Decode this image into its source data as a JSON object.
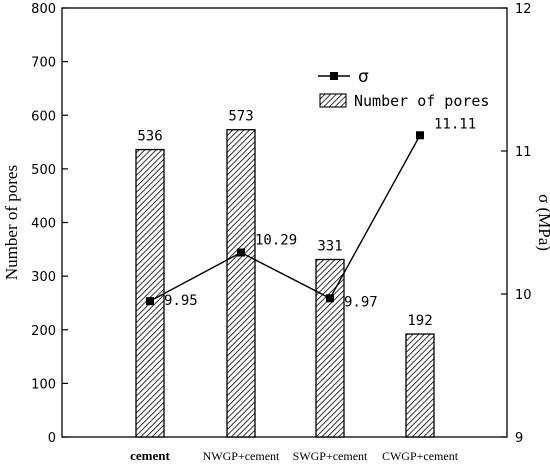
{
  "chart_data": {
    "type": "bar+line",
    "categories": [
      "cement",
      "NWGP+cement",
      "SWGP+cement",
      "CWGP+cement"
    ],
    "series": [
      {
        "name": "Number of pores",
        "type": "bar",
        "axis": "left",
        "values": [
          536,
          573,
          331,
          192
        ],
        "labels": [
          "536",
          "573",
          "331",
          "192"
        ],
        "pattern": "diagonal-hatch"
      },
      {
        "name": "σ",
        "type": "line",
        "axis": "right",
        "marker": "square",
        "values": [
          9.95,
          10.29,
          9.97,
          11.11
        ],
        "labels": [
          "9.95",
          "10.29",
          "9.97",
          "11.11"
        ]
      }
    ],
    "ylabel": "Number of pores",
    "ylim": [
      0,
      800
    ],
    "yticks": [
      "0",
      "100",
      "200",
      "300",
      "400",
      "500",
      "600",
      "700",
      "800"
    ],
    "y2label": "σ (MPa)",
    "y2lim": [
      9,
      12
    ],
    "y2ticks": [
      "9",
      "10",
      "11",
      "12"
    ],
    "legend_position": "top-right",
    "grid": false,
    "colors": {
      "bar_fill": "#ffffff",
      "hatch": "#000000",
      "line": "#000000"
    }
  }
}
